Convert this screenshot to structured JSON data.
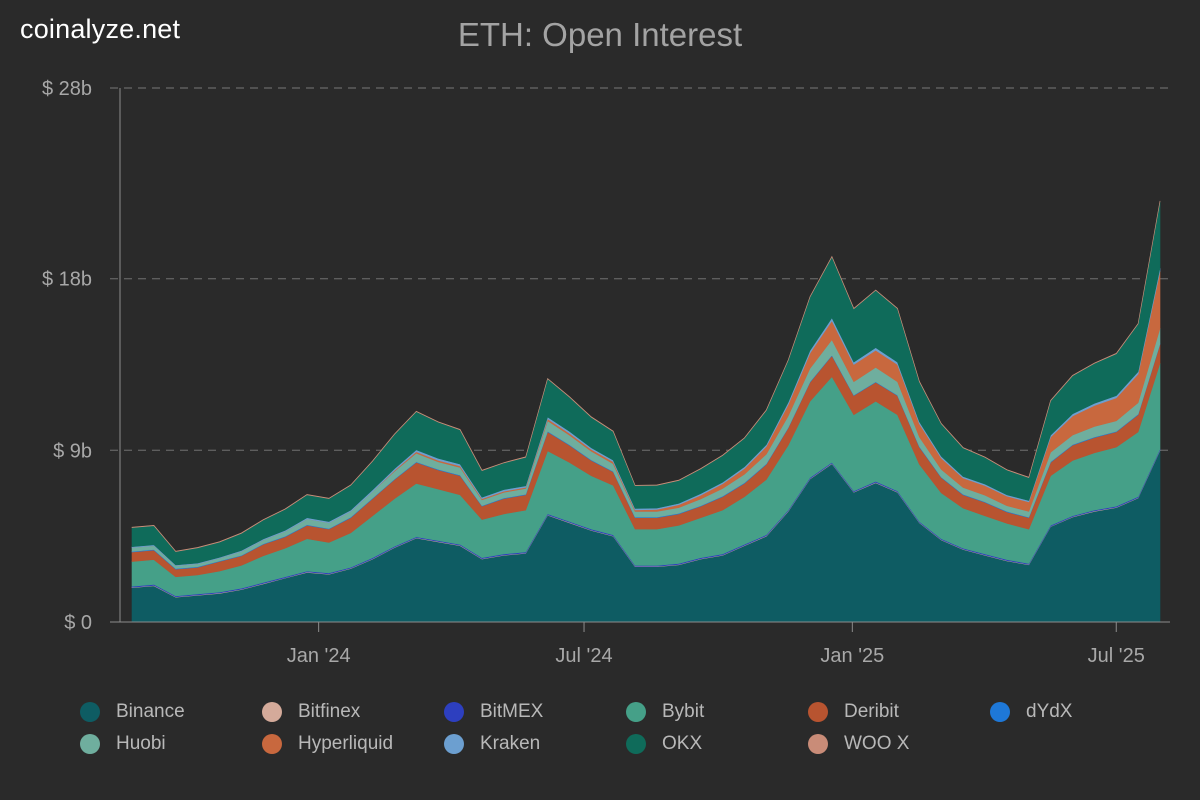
{
  "brand": "coinalyze.net",
  "chart_data": {
    "type": "area",
    "stacked": true,
    "title": "ETH: Open Interest",
    "xlabel": "",
    "ylabel": "",
    "ylim": [
      0,
      28
    ],
    "y_unit": "billion USD",
    "yticks": [
      {
        "value": 0,
        "label": "$ 0"
      },
      {
        "value": 9,
        "label": "$ 9b"
      },
      {
        "value": 18,
        "label": "$ 18b"
      },
      {
        "value": 28,
        "label": "$ 28b"
      }
    ],
    "xticks": [
      {
        "value": "2024-01-01",
        "label": "Jan '24"
      },
      {
        "value": "2024-07-01",
        "label": "Jul '24"
      },
      {
        "value": "2025-01-01",
        "label": "Jan '25"
      },
      {
        "value": "2025-07-01",
        "label": "Jul '25"
      }
    ],
    "x_range": [
      "2023-08-26",
      "2025-07-31"
    ],
    "x": [
      "2023-08-26",
      "2023-09-10",
      "2023-09-25",
      "2023-10-10",
      "2023-10-25",
      "2023-11-09",
      "2023-11-24",
      "2023-12-09",
      "2023-12-24",
      "2024-01-08",
      "2024-01-23",
      "2024-02-07",
      "2024-02-22",
      "2024-03-08",
      "2024-03-23",
      "2024-04-07",
      "2024-04-22",
      "2024-05-07",
      "2024-05-22",
      "2024-06-06",
      "2024-06-21",
      "2024-07-06",
      "2024-07-21",
      "2024-08-05",
      "2024-08-20",
      "2024-09-04",
      "2024-09-19",
      "2024-10-04",
      "2024-10-19",
      "2024-11-03",
      "2024-11-18",
      "2024-12-03",
      "2024-12-18",
      "2025-01-02",
      "2025-01-17",
      "2025-02-01",
      "2025-02-16",
      "2025-03-03",
      "2025-03-18",
      "2025-04-02",
      "2025-04-17",
      "2025-05-02",
      "2025-05-17",
      "2025-06-01",
      "2025-06-16",
      "2025-07-01",
      "2025-07-16",
      "2025-07-31"
    ],
    "grid": "horizontal-dashed",
    "legend_position": "bottom",
    "series": [
      {
        "name": "Binance",
        "color": "#0e5c63",
        "values": [
          1.8,
          1.9,
          1.3,
          1.4,
          1.5,
          1.7,
          2.0,
          2.3,
          2.6,
          2.5,
          2.8,
          3.3,
          3.9,
          4.4,
          4.2,
          4.0,
          3.3,
          3.5,
          3.6,
          5.6,
          5.2,
          4.8,
          4.5,
          2.9,
          2.9,
          3.0,
          3.3,
          3.5,
          4.0,
          4.5,
          5.8,
          7.5,
          8.3,
          6.8,
          7.3,
          6.8,
          5.2,
          4.3,
          3.8,
          3.5,
          3.2,
          3.0,
          5.0,
          5.5,
          5.8,
          6.0,
          6.5,
          9.0
        ]
      },
      {
        "name": "Bitfinex",
        "color": "#d4aa9a",
        "values": [
          0.02,
          0.02,
          0.02,
          0.02,
          0.02,
          0.02,
          0.02,
          0.02,
          0.02,
          0.02,
          0.02,
          0.02,
          0.02,
          0.02,
          0.02,
          0.02,
          0.02,
          0.02,
          0.02,
          0.02,
          0.02,
          0.02,
          0.02,
          0.02,
          0.02,
          0.02,
          0.02,
          0.02,
          0.02,
          0.02,
          0.02,
          0.02,
          0.02,
          0.02,
          0.02,
          0.02,
          0.02,
          0.02,
          0.02,
          0.02,
          0.02,
          0.02,
          0.02,
          0.02,
          0.02,
          0.02,
          0.02,
          0.02
        ]
      },
      {
        "name": "BitMEX",
        "color": "#2d3fbf",
        "values": [
          0.05,
          0.05,
          0.05,
          0.05,
          0.05,
          0.05,
          0.05,
          0.05,
          0.05,
          0.05,
          0.05,
          0.05,
          0.05,
          0.05,
          0.05,
          0.05,
          0.05,
          0.05,
          0.05,
          0.05,
          0.05,
          0.05,
          0.05,
          0.05,
          0.05,
          0.05,
          0.05,
          0.05,
          0.05,
          0.05,
          0.05,
          0.05,
          0.05,
          0.05,
          0.05,
          0.05,
          0.05,
          0.05,
          0.05,
          0.05,
          0.05,
          0.05,
          0.05,
          0.05,
          0.05,
          0.05,
          0.05,
          0.05
        ]
      },
      {
        "name": "Bybit",
        "color": "#45a088",
        "values": [
          1.3,
          1.3,
          1.0,
          1.0,
          1.1,
          1.2,
          1.4,
          1.5,
          1.7,
          1.6,
          1.8,
          2.2,
          2.5,
          2.8,
          2.7,
          2.6,
          2.0,
          2.1,
          2.2,
          3.3,
          3.1,
          2.8,
          2.6,
          1.9,
          1.9,
          2.0,
          2.1,
          2.3,
          2.5,
          2.9,
          3.4,
          4.0,
          4.5,
          4.0,
          4.2,
          4.0,
          3.0,
          2.4,
          2.1,
          2.0,
          1.9,
          1.8,
          2.6,
          2.9,
          3.0,
          3.1,
          3.4,
          4.5
        ]
      },
      {
        "name": "Deribit",
        "color": "#b85430",
        "values": [
          0.5,
          0.5,
          0.4,
          0.4,
          0.5,
          0.5,
          0.6,
          0.6,
          0.7,
          0.7,
          0.8,
          0.9,
          1.0,
          1.1,
          1.0,
          1.0,
          0.7,
          0.8,
          0.8,
          1.0,
          0.9,
          0.8,
          0.7,
          0.6,
          0.6,
          0.6,
          0.6,
          0.7,
          0.7,
          0.8,
          0.9,
          1.0,
          1.1,
          1.0,
          1.0,
          1.0,
          0.9,
          0.8,
          0.7,
          0.7,
          0.6,
          0.6,
          0.7,
          0.8,
          0.8,
          0.8,
          0.9,
          1.0
        ]
      },
      {
        "name": "dYdX",
        "color": "#1e78d8",
        "values": [
          0.03,
          0.03,
          0.03,
          0.03,
          0.03,
          0.03,
          0.03,
          0.03,
          0.03,
          0.03,
          0.03,
          0.03,
          0.03,
          0.03,
          0.03,
          0.03,
          0.03,
          0.03,
          0.03,
          0.03,
          0.03,
          0.03,
          0.03,
          0.03,
          0.03,
          0.03,
          0.03,
          0.03,
          0.03,
          0.03,
          0.03,
          0.03,
          0.03,
          0.03,
          0.03,
          0.03,
          0.03,
          0.03,
          0.03,
          0.03,
          0.03,
          0.03,
          0.03,
          0.03,
          0.03,
          0.03,
          0.03,
          0.03
        ]
      },
      {
        "name": "Huobi",
        "color": "#6fae9e",
        "values": [
          0.2,
          0.2,
          0.15,
          0.15,
          0.15,
          0.2,
          0.2,
          0.25,
          0.3,
          0.3,
          0.3,
          0.35,
          0.4,
          0.45,
          0.4,
          0.4,
          0.3,
          0.3,
          0.3,
          0.55,
          0.5,
          0.45,
          0.4,
          0.3,
          0.3,
          0.3,
          0.35,
          0.4,
          0.45,
          0.5,
          0.6,
          0.7,
          0.8,
          0.7,
          0.75,
          0.7,
          0.5,
          0.4,
          0.35,
          0.35,
          0.3,
          0.3,
          0.5,
          0.5,
          0.55,
          0.55,
          0.6,
          0.8
        ]
      },
      {
        "name": "Hyperliquid",
        "color": "#c8683e",
        "values": [
          0,
          0,
          0,
          0,
          0,
          0,
          0,
          0,
          0,
          0,
          0,
          0,
          0.05,
          0.08,
          0.08,
          0.08,
          0.06,
          0.06,
          0.06,
          0.1,
          0.1,
          0.1,
          0.1,
          0.08,
          0.1,
          0.15,
          0.2,
          0.25,
          0.3,
          0.4,
          0.6,
          0.8,
          1.0,
          0.9,
          0.9,
          0.9,
          0.7,
          0.6,
          0.5,
          0.5,
          0.5,
          0.5,
          0.8,
          1.0,
          1.1,
          1.2,
          1.5,
          3.0
        ]
      },
      {
        "name": "Kraken",
        "color": "#6c9fd0",
        "values": [
          0.05,
          0.05,
          0.04,
          0.04,
          0.04,
          0.05,
          0.05,
          0.06,
          0.07,
          0.07,
          0.07,
          0.08,
          0.09,
          0.1,
          0.1,
          0.1,
          0.08,
          0.08,
          0.08,
          0.1,
          0.1,
          0.09,
          0.09,
          0.07,
          0.07,
          0.07,
          0.08,
          0.08,
          0.09,
          0.1,
          0.12,
          0.14,
          0.15,
          0.13,
          0.14,
          0.13,
          0.1,
          0.09,
          0.08,
          0.08,
          0.07,
          0.07,
          0.1,
          0.11,
          0.11,
          0.12,
          0.13,
          0.16
        ]
      },
      {
        "name": "OKX",
        "color": "#0f6b5a",
        "values": [
          1.0,
          1.0,
          0.7,
          0.8,
          0.8,
          0.9,
          1.0,
          1.1,
          1.2,
          1.2,
          1.3,
          1.5,
          1.8,
          2.0,
          1.9,
          1.8,
          1.4,
          1.4,
          1.5,
          2.0,
          1.8,
          1.6,
          1.5,
          1.2,
          1.2,
          1.2,
          1.3,
          1.4,
          1.5,
          1.8,
          2.2,
          2.8,
          3.2,
          2.8,
          3.0,
          2.8,
          2.1,
          1.7,
          1.5,
          1.4,
          1.3,
          1.2,
          1.8,
          2.0,
          2.1,
          2.2,
          2.5,
          3.5
        ]
      },
      {
        "name": "WOO X",
        "color": "#c98c78",
        "values": [
          0.02,
          0.02,
          0.02,
          0.02,
          0.02,
          0.02,
          0.02,
          0.02,
          0.02,
          0.02,
          0.02,
          0.02,
          0.02,
          0.02,
          0.02,
          0.02,
          0.02,
          0.02,
          0.02,
          0.02,
          0.02,
          0.02,
          0.02,
          0.02,
          0.02,
          0.02,
          0.02,
          0.02,
          0.02,
          0.02,
          0.02,
          0.02,
          0.02,
          0.02,
          0.02,
          0.02,
          0.02,
          0.02,
          0.02,
          0.02,
          0.02,
          0.02,
          0.02,
          0.02,
          0.02,
          0.02,
          0.02,
          0.02
        ]
      }
    ],
    "stack_order": [
      "Binance",
      "Bitfinex",
      "BitMEX",
      "Bybit",
      "Deribit",
      "dYdX",
      "Huobi",
      "Hyperliquid",
      "Kraken",
      "OKX",
      "WOO X"
    ]
  }
}
